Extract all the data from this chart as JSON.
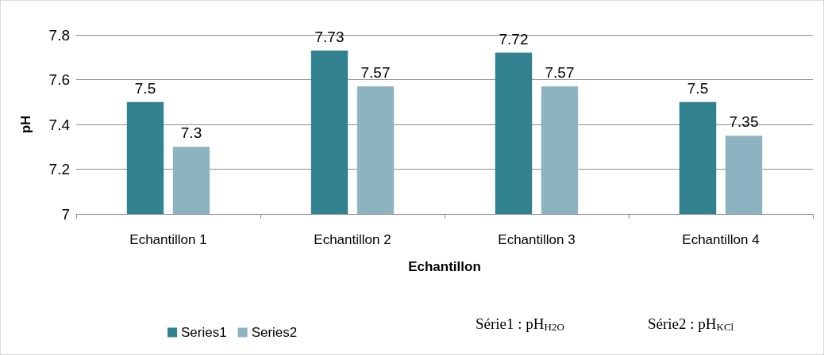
{
  "chart_data": {
    "type": "bar",
    "categories": [
      "Echantillon 1",
      "Echantillon 2",
      "Echantillon 3",
      "Echantillon 4"
    ],
    "series": [
      {
        "name": "Series1",
        "color": "#31818f",
        "values": [
          7.5,
          7.73,
          7.72,
          7.5
        ]
      },
      {
        "name": "Series2",
        "color": "#8db3c0",
        "values": [
          7.3,
          7.57,
          7.57,
          7.35
        ]
      }
    ],
    "xlabel": "Echantillon",
    "ylabel": "pH",
    "ylim": [
      7,
      7.8
    ],
    "yticks": [
      7,
      7.2,
      7.4,
      7.6,
      7.8
    ],
    "grid": "y",
    "legend": "bottom left",
    "data_labels": true,
    "annotations": [
      "Série1 : pH$_{H2O}$",
      "Série2 : pH$_{KCl}$"
    ]
  }
}
